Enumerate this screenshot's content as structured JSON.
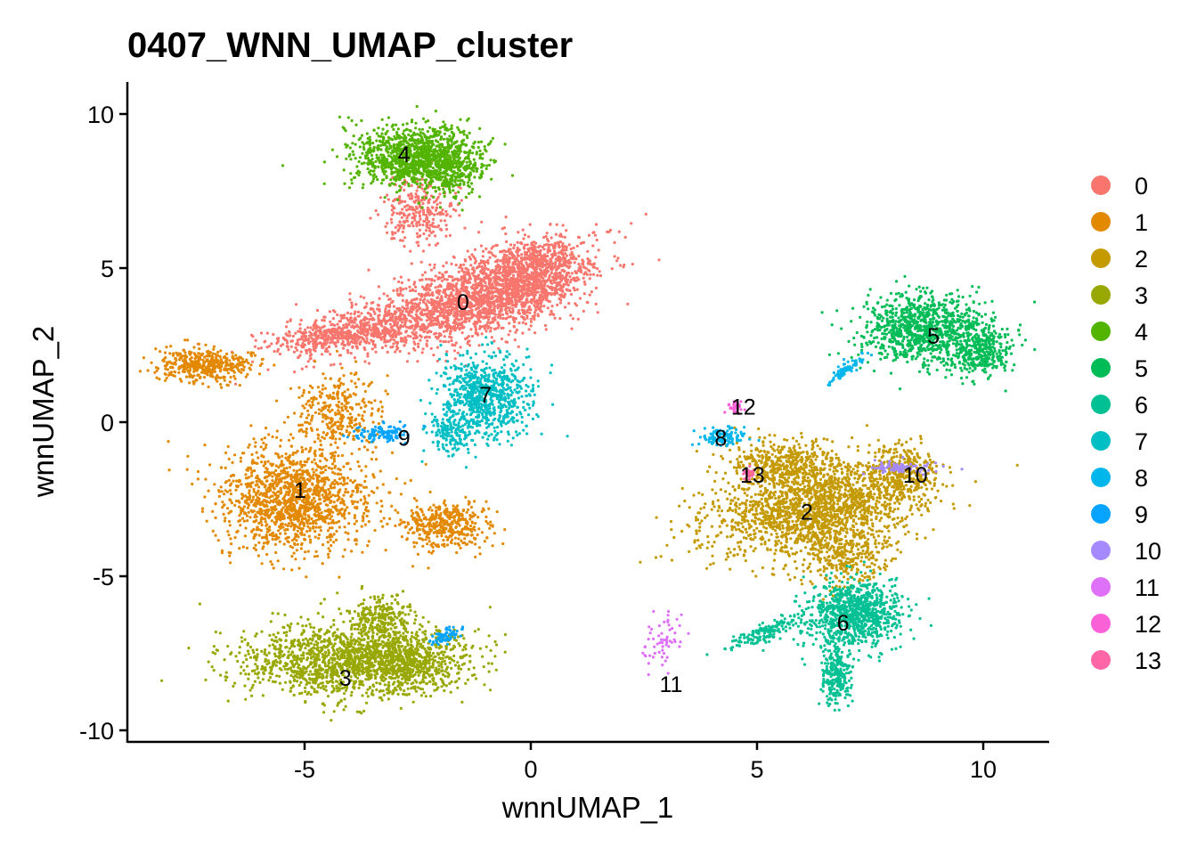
{
  "chart_data": {
    "type": "scatter",
    "title": "0407_WNN_UMAP_cluster",
    "xlabel": "wnnUMAP_1",
    "ylabel": "wnnUMAP_2",
    "xlim": [
      -8.9,
      11.5
    ],
    "ylim": [
      -10.4,
      11.0
    ],
    "x_ticks": [
      -5,
      0,
      5,
      10
    ],
    "y_ticks": [
      -10,
      -5,
      0,
      5,
      10
    ],
    "grid": false,
    "legend_position": "right",
    "clusters": [
      {
        "name": "0",
        "color": "#F8766D",
        "label_pos": [
          -1.5,
          3.9
        ]
      },
      {
        "name": "1",
        "color": "#E38900",
        "label_pos": [
          -5.1,
          -2.2
        ]
      },
      {
        "name": "2",
        "color": "#C49A00",
        "label_pos": [
          6.1,
          -2.9
        ]
      },
      {
        "name": "3",
        "color": "#99A800",
        "label_pos": [
          -4.1,
          -8.3
        ]
      },
      {
        "name": "4",
        "color": "#53B400",
        "label_pos": [
          -2.8,
          8.7
        ]
      },
      {
        "name": "5",
        "color": "#00BC56",
        "label_pos": [
          8.9,
          2.8
        ]
      },
      {
        "name": "6",
        "color": "#00C094",
        "label_pos": [
          6.9,
          -6.5
        ]
      },
      {
        "name": "7",
        "color": "#00BFC4",
        "label_pos": [
          -1.0,
          0.9
        ]
      },
      {
        "name": "8",
        "color": "#00B6EB",
        "label_pos": [
          4.2,
          -0.5
        ]
      },
      {
        "name": "9",
        "color": "#06A4FF",
        "label_pos": [
          -2.8,
          -0.5
        ]
      },
      {
        "name": "10",
        "color": "#A58AFF",
        "label_pos": [
          8.5,
          -1.7
        ]
      },
      {
        "name": "11",
        "color": "#DF70F8",
        "label_pos": [
          3.1,
          -8.5
        ]
      },
      {
        "name": "12",
        "color": "#FB61D7",
        "label_pos": [
          4.7,
          0.5
        ]
      },
      {
        "name": "13",
        "color": "#FF66A8",
        "label_pos": [
          4.9,
          -1.7
        ]
      }
    ]
  }
}
